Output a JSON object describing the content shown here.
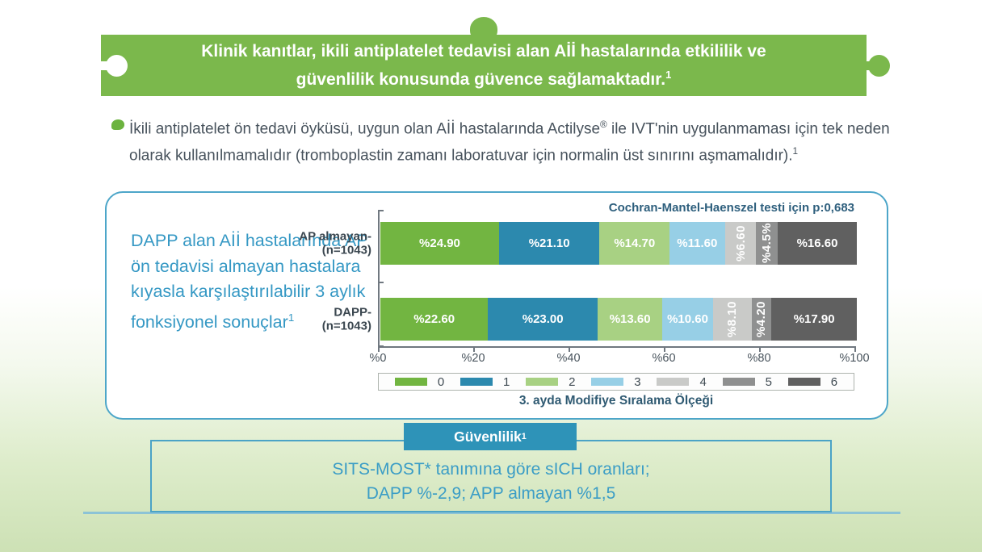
{
  "header": {
    "title_line1": "Klinik kanıtlar, ikili antiplatelet tedavisi alan Aİİ hastalarında etkililik ve",
    "title_line2": "güvenlilik konusunda güvence sağlamaktadır.",
    "title_sup": "1"
  },
  "intro": {
    "text_before_brand": "İkili antiplatelet ön tedavi öyküsü, uygun olan Aİİ hastalarında Actilyse",
    "registered_mark": "®",
    "text_after_brand": " ile IVT'nin uygulanmaması için tek neden olarak kullanılmamalıdır (tromboplastin zamanı laboratuvar için normalin üst sınırını aşmamalıdır).",
    "sup": "1"
  },
  "panel": {
    "side_note": "DAPP alan Aİİ hastalarında AP ön tedavisi almayan hastalara kıyasla karşılaştırılabilir 3 aylık fonksiyonel sonuçlar",
    "side_note_sup": "1",
    "stat_note": "Cochran-Mantel-Haenszel testi için p:0,683"
  },
  "chart_data": {
    "type": "bar",
    "orientation": "horizontal",
    "stacked": true,
    "xlabel": "3. ayda Modifiye Sıralama Ölçeği",
    "xlim": [
      0,
      100
    ],
    "x_ticks": [
      "%0",
      "%20",
      "%40",
      "%60",
      "%80",
      "%100"
    ],
    "legend_position": "bottom",
    "legend": [
      {
        "label": "0",
        "color": "#72b541"
      },
      {
        "label": "1",
        "color": "#2c89ae"
      },
      {
        "label": "2",
        "color": "#a8d183"
      },
      {
        "label": "3",
        "color": "#97cfe6"
      },
      {
        "label": "4",
        "color": "#c9cac8"
      },
      {
        "label": "5",
        "color": "#8f9090"
      },
      {
        "label": "6",
        "color": "#606060"
      }
    ],
    "series": [
      {
        "name": "AP almayan-",
        "n_label": "(n=1043)",
        "values": [
          24.9,
          21.1,
          14.7,
          11.6,
          6.6,
          4.5,
          16.6
        ],
        "labels": [
          "%24.90",
          "%21.10",
          "%14.70",
          "%11.60",
          "%6.60",
          "%4.5%",
          "%16.60"
        ]
      },
      {
        "name": "DAPP-",
        "n_label": "(n=1043)",
        "values": [
          22.6,
          23.0,
          13.6,
          10.6,
          8.1,
          4.2,
          17.9
        ],
        "labels": [
          "%22.60",
          "%23.00",
          "%13.60",
          "%10.60",
          "%8.10",
          "%4.20",
          "%17.90"
        ]
      }
    ]
  },
  "safety": {
    "button_label": "Güvenlilik",
    "button_sup": "1",
    "line1": "SITS-MOST* tanımına göre sICH oranları;",
    "line2": "DAPP %-2,9; APP almayan %1,5"
  }
}
